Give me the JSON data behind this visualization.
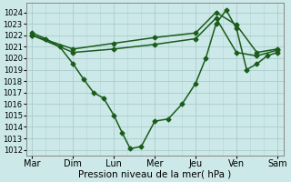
{
  "background_color": "#cce8e8",
  "grid_color": "#aacccc",
  "line_color": "#1a5c1a",
  "marker": "D",
  "marker_size": 2.5,
  "line_width": 1.1,
  "xlabel": "Pression niveau de la mer( hPa )",
  "xlabel_fontsize": 7.5,
  "ylim": [
    1011.5,
    1024.8
  ],
  "yticks": [
    1012,
    1013,
    1014,
    1015,
    1016,
    1017,
    1018,
    1019,
    1020,
    1021,
    1022,
    1023,
    1024
  ],
  "xtick_labels": [
    "Mar",
    "Dim",
    "Lun",
    "Mer",
    "Jeu",
    "Ven",
    "Sam"
  ],
  "xtick_fontsize": 7.0,
  "ytick_fontsize": 6.0,
  "line1_x": [
    0.0,
    0.33,
    0.67,
    1.0,
    1.25,
    1.5,
    1.75,
    2.0,
    2.2,
    2.4,
    2.67,
    3.0,
    3.33,
    3.67,
    4.0,
    4.25,
    4.5,
    4.75,
    5.0,
    5.25,
    5.5,
    5.75,
    6.0
  ],
  "line1_y": [
    1022.2,
    1021.7,
    1021.0,
    1019.5,
    1018.2,
    1017.0,
    1016.5,
    1015.0,
    1013.5,
    1012.1,
    1012.3,
    1014.5,
    1014.7,
    1016.0,
    1017.8,
    1020.0,
    1023.0,
    1024.2,
    1022.6,
    1019.0,
    1019.5,
    1020.2,
    1020.5
  ],
  "line2_x": [
    0.0,
    1.0,
    2.0,
    3.0,
    4.0,
    4.5,
    5.0,
    5.5,
    6.0
  ],
  "line2_y": [
    1022.0,
    1020.8,
    1021.3,
    1021.8,
    1022.2,
    1024.0,
    1022.9,
    1020.5,
    1020.8
  ],
  "line3_x": [
    0.0,
    1.0,
    2.0,
    3.0,
    4.0,
    4.5,
    5.0,
    5.5,
    6.0
  ],
  "line3_y": [
    1022.0,
    1020.5,
    1020.8,
    1021.2,
    1021.7,
    1023.5,
    1020.5,
    1020.2,
    1020.7
  ],
  "xlim": [
    -0.15,
    6.15
  ],
  "day_positions": [
    0.0,
    1.0,
    2.0,
    3.0,
    4.0,
    5.0,
    6.0
  ]
}
